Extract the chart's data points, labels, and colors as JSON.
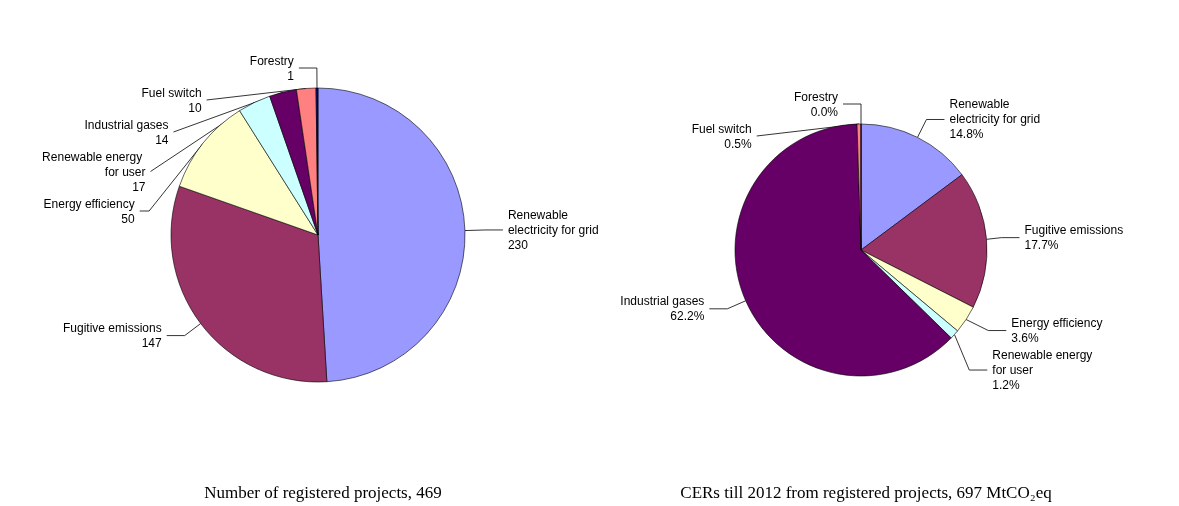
{
  "chart_data": [
    {
      "type": "pie",
      "title": "Number of registered projects, 469",
      "categories": [
        "Renewable electricity for grid",
        "Fugitive emissions",
        "Energy efficiency",
        "Renewable energy for user",
        "Industrial gases",
        "Fuel switch",
        "Forestry"
      ],
      "values": [
        230,
        147,
        50,
        17,
        14,
        10,
        1
      ],
      "colors": [
        "#9999ff",
        "#993366",
        "#ffffcc",
        "#ccffff",
        "#660066",
        "#ff8080",
        "#000080"
      ],
      "data_labels": true,
      "legend": false
    },
    {
      "type": "pie",
      "title": "CERs till 2012 from registered projects, 697 MtCO₂eq",
      "categories": [
        "Renewable electricity for grid",
        "Fugitive emissions",
        "Energy efficiency",
        "Renewable energy for user",
        "Industrial gases",
        "Fuel switch",
        "Forestry"
      ],
      "values": [
        14.8,
        17.7,
        3.6,
        1.2,
        62.2,
        0.5,
        0.0
      ],
      "colors": [
        "#9999ff",
        "#993366",
        "#ffffcc",
        "#ccffff",
        "#660066",
        "#ff8080",
        "#000080"
      ],
      "value_labels": [
        "14.8%",
        "17.7%",
        "3.6%",
        "1.2%",
        "62.2%",
        "0.5%",
        "0.0%"
      ],
      "legend": false
    }
  ]
}
